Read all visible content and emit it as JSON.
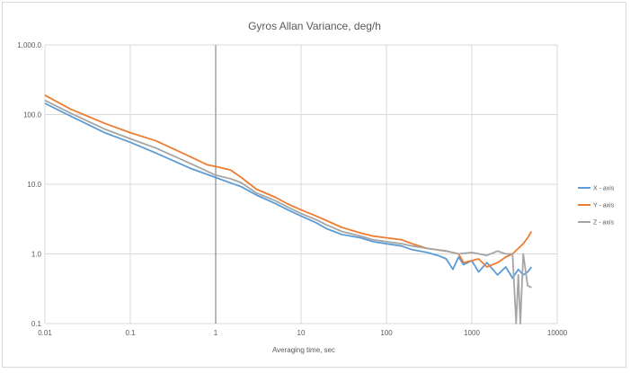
{
  "chart_data": {
    "type": "line",
    "title": "Gyros Allan Variance, deg/h",
    "xlabel": "Averaging time, sec",
    "ylabel": "",
    "x_scale": "log",
    "y_scale": "log",
    "xlim": [
      0.01,
      10000
    ],
    "ylim": [
      0.1,
      1000
    ],
    "x_ticks": [
      0.01,
      0.1,
      1,
      10,
      100,
      1000,
      10000
    ],
    "x_tick_labels": [
      "0.01",
      "0.1",
      "1",
      "10",
      "100",
      "1000",
      "10000"
    ],
    "y_ticks": [
      0.1,
      1,
      10,
      100,
      1000
    ],
    "y_tick_labels": [
      "0.1",
      "1.0",
      "10.0",
      "100.0",
      "1,000.0"
    ],
    "grid": true,
    "legend_position": "right",
    "reference_line_x": 1,
    "series": [
      {
        "name": "X - axis",
        "color": "#5b9bd5",
        "x": [
          0.01,
          0.02,
          0.05,
          0.1,
          0.2,
          0.5,
          1,
          2,
          3,
          5,
          7,
          10,
          15,
          20,
          30,
          50,
          70,
          100,
          150,
          200,
          300,
          400,
          500,
          600,
          700,
          800,
          1000,
          1200,
          1500,
          2000,
          2500,
          3000,
          3500,
          4000,
          4500,
          5000
        ],
        "values": [
          145,
          95,
          55,
          40,
          28,
          17,
          12.5,
          9.2,
          7,
          5.3,
          4.3,
          3.5,
          2.8,
          2.3,
          1.9,
          1.7,
          1.5,
          1.4,
          1.3,
          1.15,
          1.05,
          0.95,
          0.85,
          0.6,
          0.9,
          0.7,
          0.8,
          0.55,
          0.75,
          0.5,
          0.65,
          0.45,
          0.6,
          0.5,
          0.55,
          0.65
        ]
      },
      {
        "name": "Y - axis",
        "color": "#ed7d31",
        "x": [
          0.01,
          0.02,
          0.05,
          0.1,
          0.2,
          0.5,
          0.8,
          1,
          1.5,
          2,
          3,
          5,
          7,
          10,
          15,
          20,
          30,
          50,
          70,
          100,
          150,
          200,
          300,
          500,
          700,
          800,
          1000,
          1200,
          1500,
          2000,
          2500,
          3000,
          3500,
          4000,
          4500,
          5000
        ],
        "values": [
          190,
          120,
          75,
          55,
          42,
          25,
          19,
          18,
          16,
          12.5,
          8.5,
          6.5,
          5.2,
          4.3,
          3.5,
          3.0,
          2.4,
          2.0,
          1.8,
          1.7,
          1.6,
          1.4,
          1.2,
          1.1,
          1.0,
          0.75,
          0.8,
          0.85,
          0.65,
          0.75,
          0.9,
          1.0,
          1.2,
          1.4,
          1.7,
          2.1
        ]
      },
      {
        "name": "Z - axis",
        "color": "#a5a5a5",
        "x": [
          0.01,
          0.02,
          0.05,
          0.1,
          0.2,
          0.5,
          1,
          1.5,
          2,
          3,
          5,
          7,
          10,
          15,
          20,
          30,
          50,
          70,
          100,
          150,
          200,
          300,
          500,
          700,
          1000,
          1500,
          2000,
          2500,
          3000,
          3300,
          3500,
          3700,
          4000,
          4500,
          5000
        ],
        "values": [
          160,
          105,
          62,
          45,
          33,
          20,
          13.5,
          12,
          10.5,
          7.5,
          5.8,
          4.7,
          3.8,
          3.1,
          2.6,
          2.1,
          1.8,
          1.6,
          1.5,
          1.4,
          1.3,
          1.2,
          1.1,
          1.0,
          1.05,
          0.95,
          1.1,
          1.0,
          1.0,
          0.1,
          0.5,
          0.1,
          1.0,
          0.35,
          0.33
        ]
      }
    ]
  }
}
